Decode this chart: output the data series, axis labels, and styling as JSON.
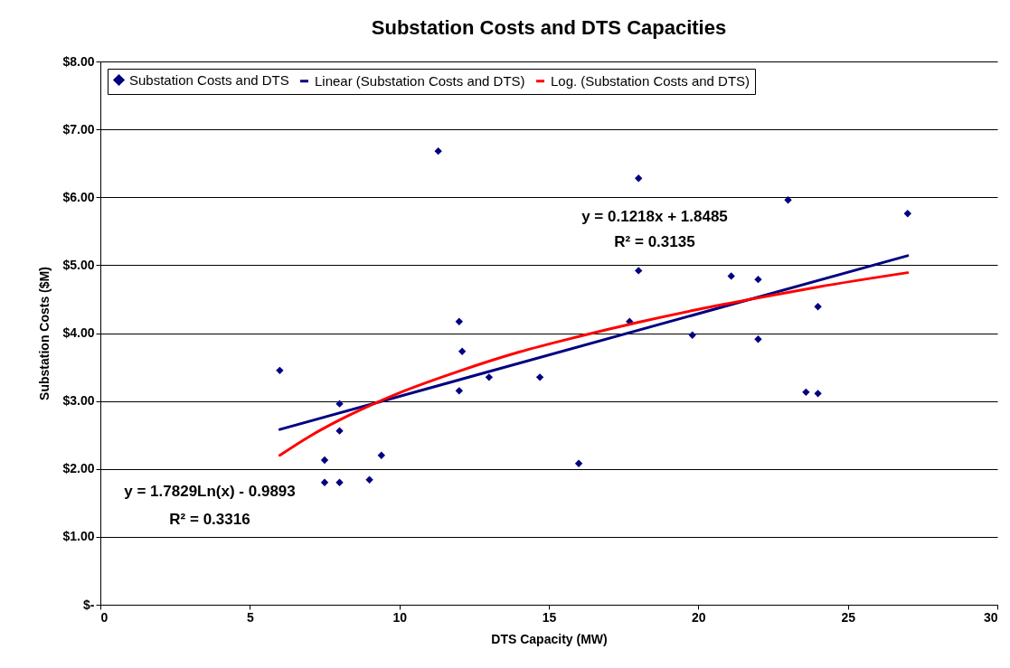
{
  "chart_data": {
    "type": "scatter",
    "title": "Substation Costs and DTS Capacities",
    "xlabel": "DTS Capacity (MW)",
    "ylabel": "Substation Costs ($M)",
    "xlim": [
      0,
      30
    ],
    "xticks": [
      0,
      5,
      10,
      15,
      20,
      25,
      30
    ],
    "ylim": [
      0,
      8
    ],
    "yticks": [
      {
        "value": 0,
        "label": "$-"
      },
      {
        "value": 1,
        "label": "$1.00"
      },
      {
        "value": 2,
        "label": "$2.00"
      },
      {
        "value": 3,
        "label": "$3.00"
      },
      {
        "value": 4,
        "label": "$4.00"
      },
      {
        "value": 5,
        "label": "$5.00"
      },
      {
        "value": 6,
        "label": "$6.00"
      },
      {
        "value": 7,
        "label": "$7.00"
      },
      {
        "value": 8,
        "label": "$8.00"
      }
    ],
    "grid": "y",
    "legend": "top",
    "series": [
      {
        "name": "Substation Costs and DTS",
        "marker": "diamond",
        "color": "#000080",
        "x": [
          6,
          7.5,
          7.5,
          8,
          8,
          8,
          9,
          9.4,
          11.3,
          12,
          12,
          12.1,
          13,
          14.7,
          16,
          17.7,
          18,
          18,
          19.8,
          21.1,
          22,
          22,
          23,
          23.6,
          24,
          24,
          27
        ],
        "values": [
          3.45,
          2.13,
          1.8,
          2.96,
          2.56,
          1.8,
          1.84,
          2.2,
          6.68,
          4.17,
          3.15,
          3.73,
          3.35,
          3.35,
          2.08,
          4.17,
          6.28,
          4.92,
          3.97,
          4.84,
          4.79,
          3.91,
          5.96,
          3.13,
          4.39,
          3.11,
          5.76
        ]
      },
      {
        "name": "Linear (Substation Costs and DTS)",
        "type": "line",
        "color": "#000080",
        "x": [
          6,
          27
        ],
        "values": [
          2.58,
          5.14
        ]
      },
      {
        "name": "Log. (Substation Costs and DTS)",
        "type": "line",
        "color": "#ff0000",
        "x": [
          6,
          7,
          8,
          9,
          10,
          12,
          14,
          16,
          18,
          20,
          22,
          24,
          27
        ],
        "values": [
          2.2,
          2.48,
          2.72,
          2.93,
          3.12,
          3.44,
          3.72,
          3.95,
          4.16,
          4.35,
          4.52,
          4.68,
          4.89
        ]
      }
    ],
    "annotations": [
      "y = 0.1218x + 1.8485",
      "R² = 0.3135",
      "y = 1.7829Ln(x) - 0.9893",
      "R² = 0.3316"
    ]
  }
}
